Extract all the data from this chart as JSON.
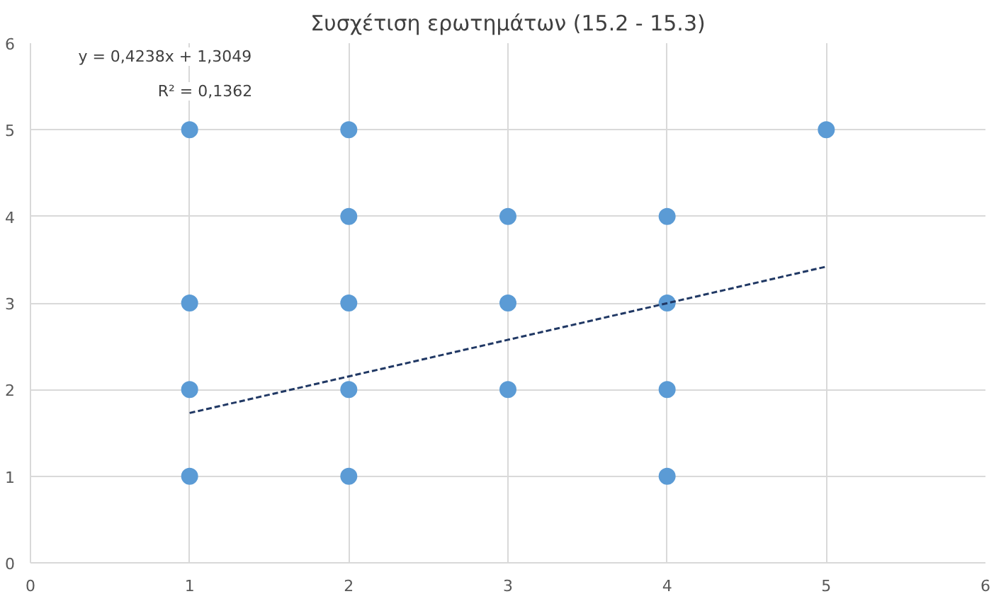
{
  "chart_data": {
    "type": "scatter",
    "title": "Συσχέτιση ερωτημάτων (15.2 - 15.3)",
    "xlim": [
      0,
      6
    ],
    "ylim": [
      0,
      6
    ],
    "xticks": [
      0,
      1,
      2,
      3,
      4,
      5,
      6
    ],
    "yticks": [
      0,
      1,
      2,
      3,
      4,
      5,
      6
    ],
    "grid": true,
    "series": [
      {
        "marker": "circle",
        "color": "#5b9bd5",
        "x": [
          1,
          1,
          1,
          1,
          2,
          2,
          2,
          2,
          2,
          3,
          3,
          3,
          4,
          4,
          4,
          4,
          5
        ],
        "values": [
          5,
          3,
          2,
          1,
          5,
          4,
          3,
          2,
          1,
          4,
          3,
          2,
          4,
          3,
          2,
          1,
          5
        ]
      },
      {
        "type": "line",
        "color": "#203864",
        "line_style": "dashed",
        "x": [
          1,
          5
        ],
        "values": [
          1.73,
          3.42
        ]
      }
    ],
    "annotations": [
      "y = 0,4238x + 1,3049",
      "R² = 0,1362"
    ]
  }
}
